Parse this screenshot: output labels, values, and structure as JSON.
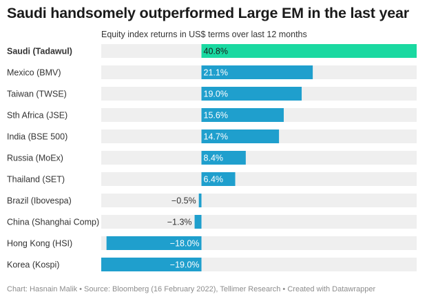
{
  "header": {
    "title": "Saudi handsomely outperformed Large EM in the last year",
    "subtitle": "Equity index returns in US$ terms over last 12 months"
  },
  "chart_data": {
    "type": "bar",
    "orientation": "horizontal",
    "title": "Saudi handsomely outperformed Large EM in the last year",
    "subtitle": "Equity index returns in US$ terms over last 12 months",
    "categories": [
      "Saudi (Tadawul)",
      "Mexico (BMV)",
      "Taiwan (TWSE)",
      "Sth Africa (JSE)",
      "India (BSE 500)",
      "Russia (MoEx)",
      "Thailand (SET)",
      "Brazil (Ibovespa)",
      "China (Shanghai Comp)",
      "Hong Kong (HSI)",
      "Korea (Kospi)"
    ],
    "values": [
      40.8,
      21.1,
      19.0,
      15.6,
      14.7,
      8.4,
      6.4,
      -0.5,
      -1.3,
      -18.0,
      -19.0
    ],
    "labels": [
      "40.8%",
      "21.1%",
      "19.0%",
      "15.6%",
      "14.7%",
      "8.4%",
      "6.4%",
      "−0.5%",
      "−1.3%",
      "−18.0%",
      "−19.0%"
    ],
    "highlight": "Saudi (Tadawul)",
    "xlim": [
      -19.0,
      40.8
    ],
    "unit": "%",
    "colors": {
      "highlight": "#1ad9a1",
      "bar": "#1f9fcd",
      "background": "#efefef",
      "label_inside": "#ffffff",
      "label_outside": "#333333"
    }
  },
  "footer": {
    "credit": "Chart: Hasnain Malik • Source: Bloomberg (16 February 2022), Tellimer Research • Created with Datawrapper"
  }
}
